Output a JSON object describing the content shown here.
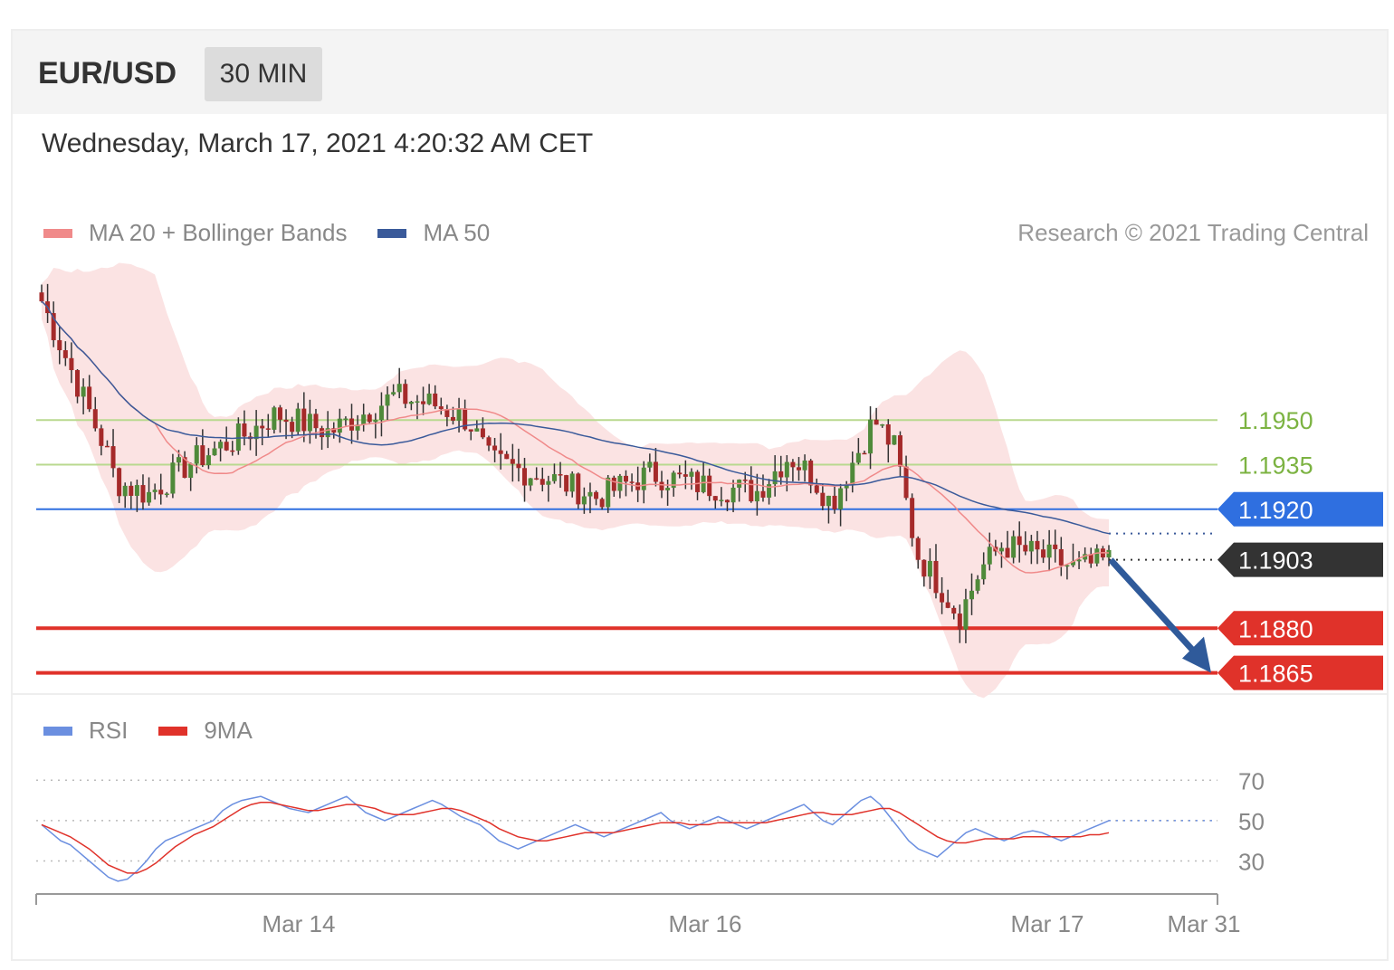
{
  "header": {
    "symbol": "EUR/USD",
    "timeframe": "30 MIN"
  },
  "datetime": "Wednesday, March 17, 2021 4:20:32 AM CET",
  "legend": {
    "ma20_label": "MA 20 + Bollinger Bands",
    "ma20_color": "#f08a8a",
    "ma50_label": "MA 50",
    "ma50_color": "#3a5a9a",
    "copyright": "Research © 2021 Trading Central"
  },
  "rsi_legend": {
    "rsi_label": "RSI",
    "rsi_color": "#6b8fe0",
    "ma9_label": "9MA",
    "ma9_color": "#e0322a"
  },
  "chart_data": [
    {
      "type": "candlestick",
      "title": "EUR/USD",
      "timeframe": "30 MIN",
      "ylim": [
        1.186,
        1.2003
      ],
      "x_ticks": [
        "Mar 14",
        "Mar 16",
        "Mar 17",
        "Mar 31"
      ],
      "price_approx": {
        "start": 1.199,
        "march12_low": 1.1925,
        "march15_high": 1.197,
        "march16_low": 1.1915,
        "march16_peak": 1.195,
        "march16_drop_low": 1.1884,
        "last": 1.1903
      },
      "levels": [
        {
          "value": "1.1950",
          "kind": "resistance",
          "color": "#7cb342",
          "style": "label"
        },
        {
          "value": "1.1935",
          "kind": "resistance",
          "color": "#7cb342",
          "style": "label"
        },
        {
          "value": "1.1920",
          "kind": "pivot",
          "color": "#2f6fe0",
          "style": "tag"
        },
        {
          "value": "1.1903",
          "kind": "last-price",
          "color": "#333333",
          "style": "tag"
        },
        {
          "value": "1.1880",
          "kind": "target",
          "color": "#e0322a",
          "style": "tag"
        },
        {
          "value": "1.1865",
          "kind": "target",
          "color": "#e0322a",
          "style": "tag"
        }
      ],
      "forecast_arrow": {
        "from": 1.1903,
        "to": 1.1865,
        "color": "#2f5a9a"
      },
      "series": [
        {
          "name": "MA 20 + Bollinger Bands",
          "color": "#f08a8a"
        },
        {
          "name": "MA 50",
          "color": "#3a5a9a"
        }
      ]
    },
    {
      "type": "line",
      "title": "",
      "ylim": [
        15,
        80
      ],
      "y_ticks": [
        "70",
        "50",
        "30"
      ],
      "series": [
        {
          "name": "RSI",
          "color": "#6b8fe0"
        },
        {
          "name": "9MA",
          "color": "#e0322a"
        }
      ],
      "rsi_values": [
        48,
        44,
        40,
        38,
        34,
        30,
        26,
        22,
        20,
        21,
        25,
        30,
        36,
        40,
        42,
        44,
        46,
        48,
        50,
        55,
        58,
        60,
        61,
        62,
        60,
        58,
        56,
        55,
        54,
        56,
        58,
        60,
        62,
        58,
        54,
        52,
        50,
        52,
        54,
        56,
        58,
        60,
        58,
        55,
        52,
        50,
        48,
        44,
        40,
        38,
        36,
        38,
        40,
        42,
        44,
        46,
        48,
        46,
        44,
        42,
        44,
        46,
        48,
        50,
        52,
        54,
        50,
        48,
        46,
        48,
        50,
        52,
        50,
        48,
        46,
        48,
        50,
        52,
        54,
        56,
        58,
        54,
        50,
        48,
        52,
        56,
        60,
        62,
        58,
        52,
        46,
        40,
        36,
        34,
        32,
        36,
        40,
        44,
        46,
        44,
        42,
        40,
        42,
        44,
        45,
        44,
        42,
        40,
        42,
        44,
        46,
        48,
        50
      ],
      "ma9_values": [
        48,
        46,
        44,
        42,
        39,
        36,
        32,
        28,
        26,
        24,
        24,
        26,
        29,
        33,
        37,
        40,
        43,
        45,
        47,
        50,
        53,
        56,
        58,
        59,
        59,
        58,
        57,
        56,
        55,
        55,
        56,
        57,
        58,
        58,
        57,
        56,
        54,
        53,
        53,
        53,
        54,
        55,
        56,
        56,
        55,
        53,
        51,
        49,
        46,
        44,
        42,
        41,
        40,
        40,
        41,
        42,
        43,
        44,
        44,
        44,
        44,
        45,
        46,
        47,
        48,
        49,
        49,
        49,
        48,
        48,
        48,
        49,
        49,
        49,
        49,
        49,
        49,
        50,
        51,
        52,
        53,
        54,
        54,
        53,
        53,
        53,
        54,
        55,
        56,
        56,
        54,
        51,
        48,
        45,
        42,
        40,
        39,
        39,
        40,
        41,
        41,
        41,
        41,
        42,
        42,
        42,
        42,
        42,
        42,
        42,
        43,
        43,
        44
      ]
    }
  ]
}
